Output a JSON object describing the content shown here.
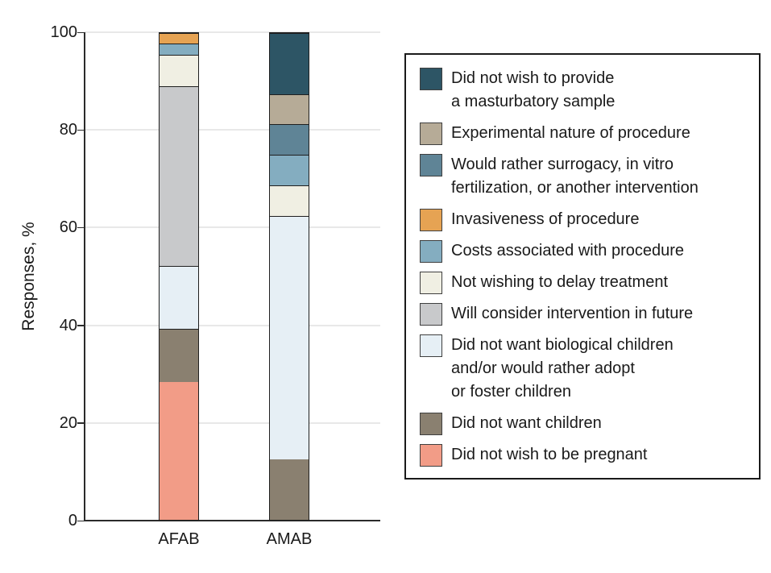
{
  "chart_data": {
    "type": "stacked_bar",
    "title": "",
    "ylabel": "Responses, %",
    "ylim": [
      0,
      100
    ],
    "yticks": [
      0,
      20,
      40,
      60,
      80,
      100
    ],
    "ytick_labels": [
      "0",
      "20",
      "40",
      "60",
      "80",
      "100"
    ],
    "categories": [
      "AFAB",
      "AMAB"
    ],
    "grid": "horizontal",
    "legend_position": "right",
    "series": [
      {
        "name": "Did not wish to provide a masturbatory sample",
        "legend_lines": [
          "Did not wish to provide",
          "a masturbatory sample"
        ],
        "color": "#2D5565",
        "values": [
          0,
          12.5
        ]
      },
      {
        "name": "Experimental nature of procedure",
        "legend_lines": [
          "Experimental nature of procedure"
        ],
        "color": "#B6AB97",
        "values": [
          0,
          6.25
        ]
      },
      {
        "name": "Would rather surrogacy, in vitro fertilization, or another intervention",
        "legend_lines": [
          "Would rather surrogacy, in vitro",
          "fertilization, or another intervention"
        ],
        "color": "#5F8496",
        "values": [
          0,
          6.25
        ]
      },
      {
        "name": "Invasiveness of procedure",
        "legend_lines": [
          "Invasiveness of procedure"
        ],
        "color": "#E6A353",
        "values": [
          2.2,
          0
        ]
      },
      {
        "name": "Costs associated with procedure",
        "legend_lines": [
          "Costs associated with procedure"
        ],
        "color": "#84ADC0",
        "values": [
          2.2,
          6.25
        ]
      },
      {
        "name": "Not wishing to delay treatment",
        "legend_lines": [
          "Not wishing to delay treatment"
        ],
        "color": "#F0EFE3",
        "values": [
          6.5,
          6.25
        ]
      },
      {
        "name": "Will consider intervention in future",
        "legend_lines": [
          "Will consider intervention in future"
        ],
        "color": "#C8C9CB",
        "values": [
          37.0,
          0
        ]
      },
      {
        "name": "Did not want biological children and/or would rather adopt or foster children",
        "legend_lines": [
          "Did not want biological children",
          "and/or would rather adopt",
          "or foster children"
        ],
        "color": "#E6EFF5",
        "values": [
          13.0,
          50
        ]
      },
      {
        "name": "Did not want children",
        "legend_lines": [
          "Did not want children"
        ],
        "color": "#8A8070",
        "values": [
          10.9,
          12.5
        ]
      },
      {
        "name": "Did not wish to be pregnant",
        "legend_lines": [
          "Did not wish to be pregnant"
        ],
        "color": "#F29C87",
        "values": [
          28.3,
          0
        ]
      }
    ]
  },
  "colors": {
    "background": "#FFFFFF",
    "axis": "#2B2B2B",
    "grid": "#E8E8E8",
    "text": "#1A1A1A",
    "bar_border": "#1F1F1F",
    "legend_border": "#1A1A1A",
    "swatch_border": "#3F3F3F"
  }
}
